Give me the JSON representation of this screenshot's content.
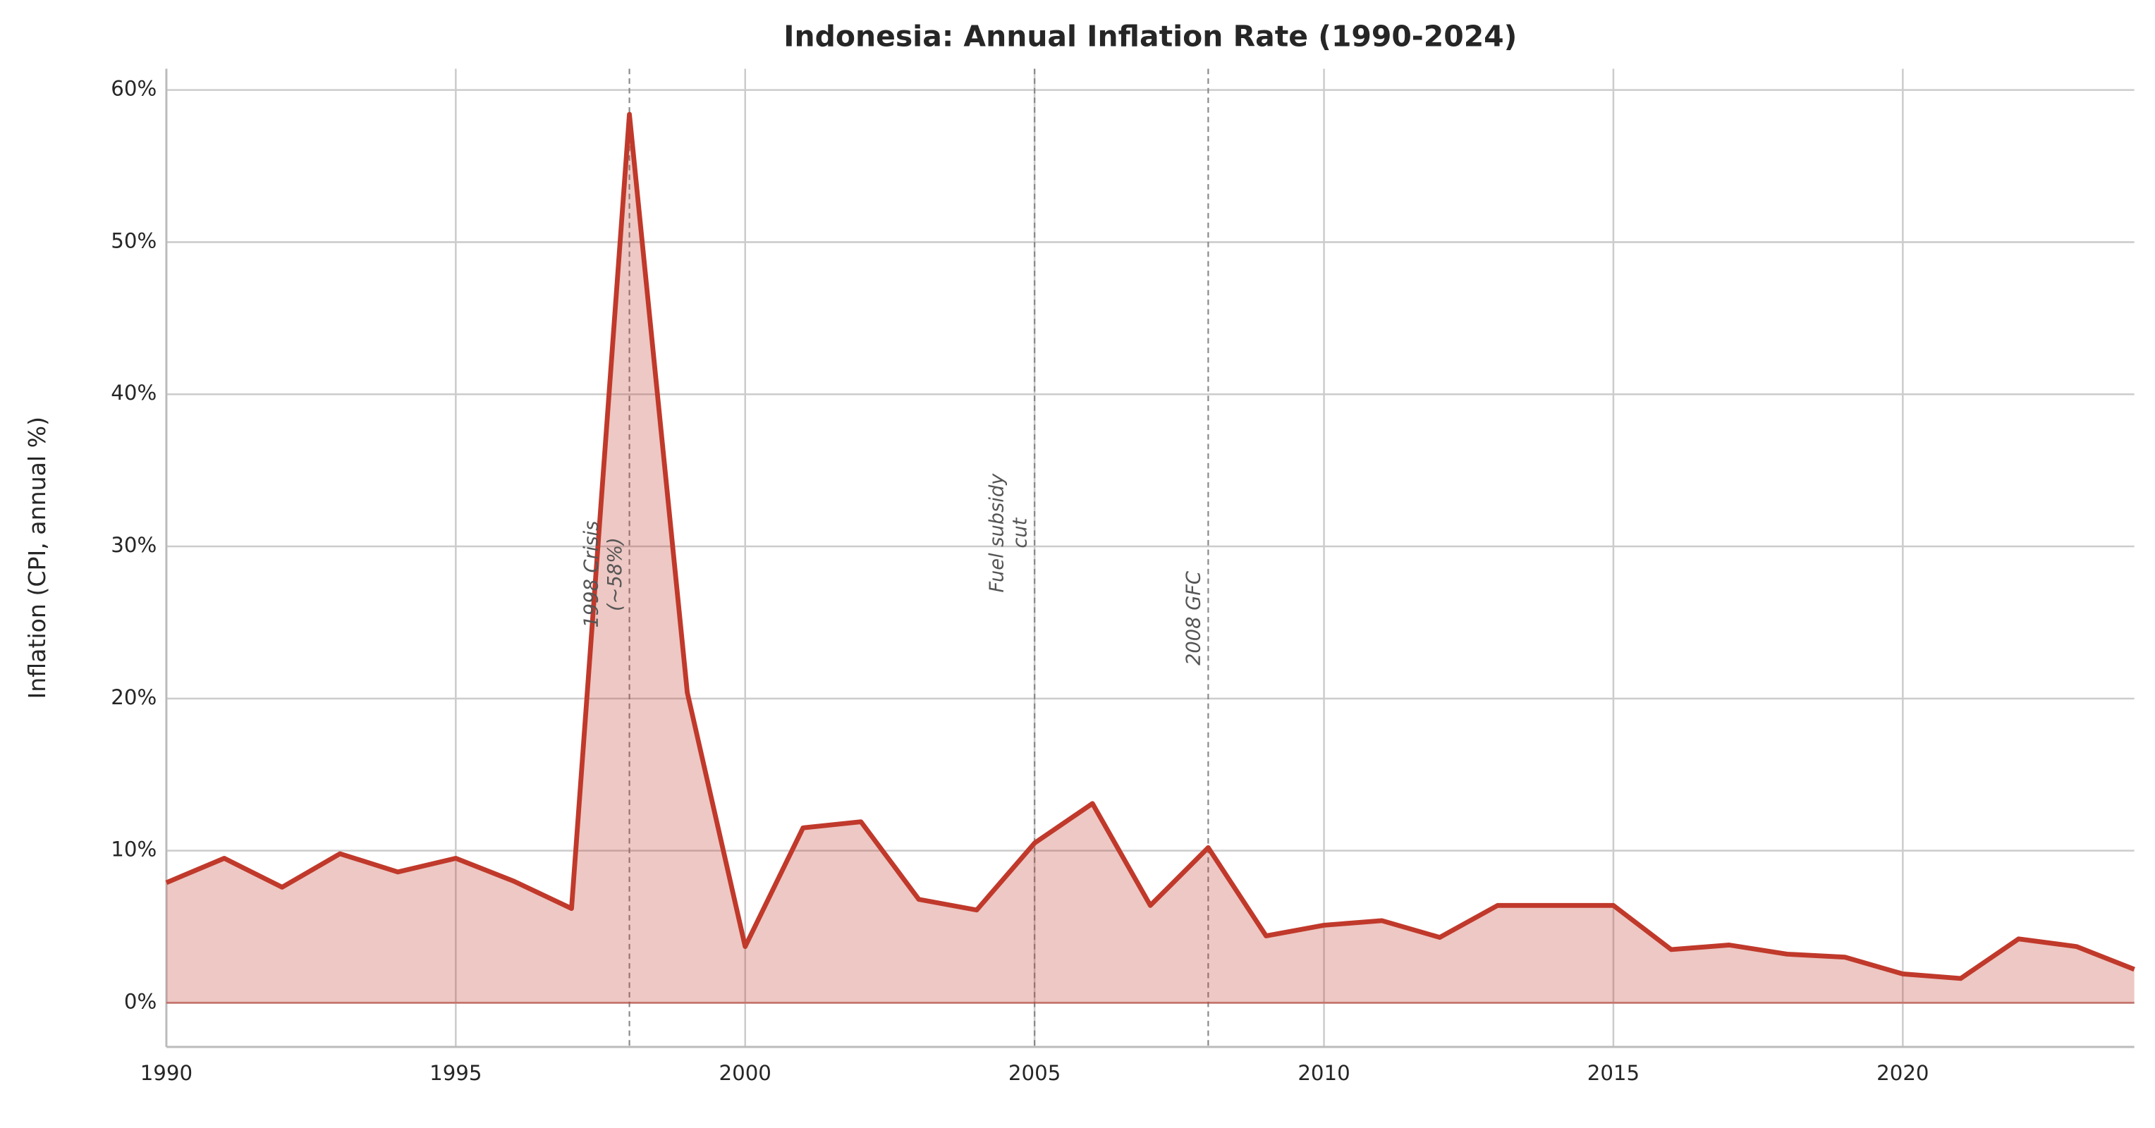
{
  "chart_data": {
    "type": "line",
    "title": "Indonesia: Annual Inflation Rate (1990-2024)",
    "y_label": "Inflation (CPI, annual %)",
    "x": [
      1990,
      1991,
      1992,
      1993,
      1994,
      1995,
      1996,
      1997,
      1998,
      1999,
      2000,
      2001,
      2002,
      2003,
      2004,
      2005,
      2006,
      2007,
      2008,
      2009,
      2010,
      2011,
      2012,
      2013,
      2014,
      2015,
      2016,
      2017,
      2018,
      2019,
      2020,
      2021,
      2022,
      2023,
      2024
    ],
    "series": [
      {
        "color": "#c0392b",
        "fill": true,
        "values": [
          7.9,
          9.5,
          7.6,
          9.8,
          8.6,
          9.5,
          8.0,
          6.2,
          58.4,
          20.4,
          3.7,
          11.5,
          11.9,
          6.8,
          6.1,
          10.5,
          13.1,
          6.4,
          10.2,
          4.4,
          5.1,
          5.4,
          4.3,
          6.4,
          6.4,
          6.4,
          3.5,
          3.8,
          3.2,
          3.0,
          1.9,
          1.6,
          4.2,
          3.7,
          2.2
        ]
      }
    ],
    "xlim": [
      1990,
      2024
    ],
    "ylim": [
      -2.9,
      61.4
    ],
    "xticks": [
      1990,
      1995,
      2000,
      2005,
      2010,
      2015,
      2020
    ],
    "yticks": [
      {
        "value": 0,
        "label": "0%"
      },
      {
        "value": 10,
        "label": "10%"
      },
      {
        "value": 20,
        "label": "20%"
      },
      {
        "value": 30,
        "label": "30%"
      },
      {
        "value": 40,
        "label": "40%"
      },
      {
        "value": 50,
        "label": "50%"
      },
      {
        "value": 60,
        "label": "60%"
      }
    ],
    "grid": true,
    "annotations": [
      {
        "x": 1998,
        "lines": [
          "1998 Crisis",
          "(~58%)"
        ]
      },
      {
        "x": 2005,
        "lines": [
          "Fuel subsidy",
          "cut"
        ]
      },
      {
        "x": 2008,
        "lines": [
          "2008 GFC"
        ]
      }
    ]
  }
}
